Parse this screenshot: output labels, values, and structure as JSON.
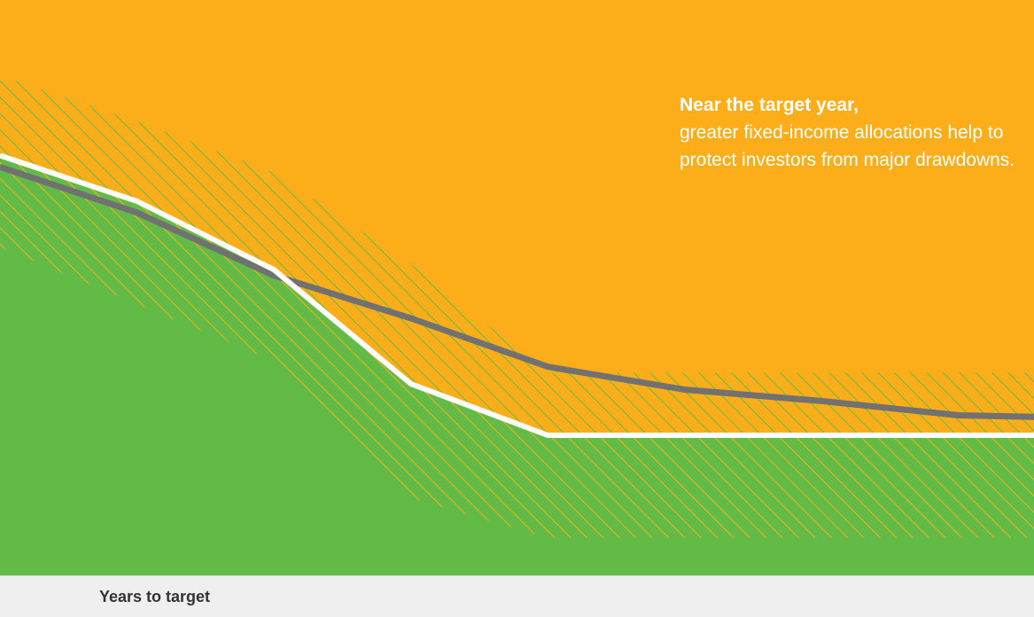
{
  "colors": {
    "fixed_income_area": "#fbae1a",
    "equity_area": "#62bb47",
    "hatch_on_orange": "#62bb47",
    "hatch_on_green": "#fbae1a",
    "upper_line": "#717171",
    "lower_line": "#ffffff"
  },
  "annotation": {
    "headline": "Near the target year,",
    "body": "greater fixed-income allocations help to protect investors from major drawdowns."
  },
  "chart_data": {
    "type": "area",
    "title": "",
    "xlabel": "Years to target",
    "ylabel": "",
    "x": [
      0,
      1,
      2,
      3,
      4,
      5,
      6,
      7,
      8
    ],
    "xlim": [
      0,
      7.55
    ],
    "ylim": [
      0,
      100
    ],
    "grid": false,
    "legend": "none",
    "series": [
      {
        "values": [
          72,
          64,
          53,
          45.5,
          37,
          33,
          31,
          28.5,
          28
        ]
      },
      {
        "values": [
          74,
          66,
          54,
          34,
          25,
          25,
          25,
          25,
          25
        ]
      },
      {
        "values": [
          88,
          80,
          71,
          55,
          36,
          36,
          36,
          36,
          36
        ]
      },
      {
        "values": [
          58,
          48,
          38,
          14,
          7,
          7,
          7,
          7,
          7
        ]
      }
    ]
  }
}
